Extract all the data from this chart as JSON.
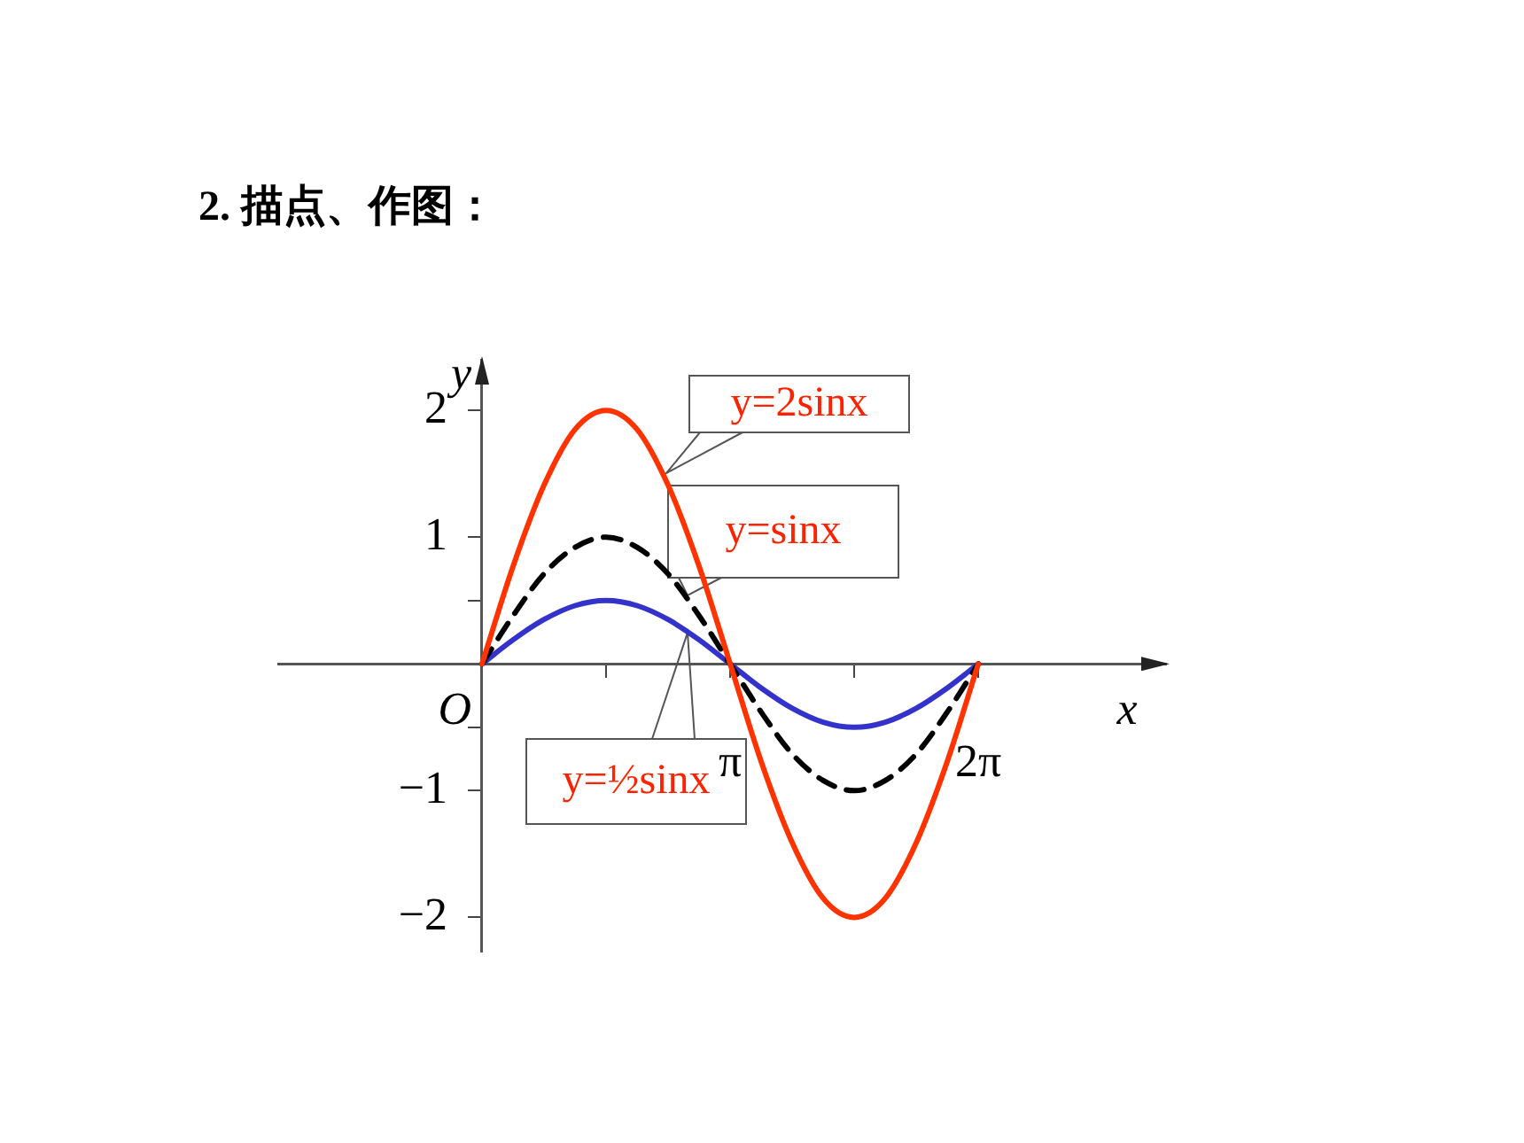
{
  "chart_data": {
    "type": "line",
    "title": "2. 描点、作图：",
    "xlabel": "x",
    "ylabel": "y",
    "xlim": [
      -2.58,
      8.66
    ],
    "ylim": [
      -2.27,
      2.4
    ],
    "xticks": [
      {
        "value": 1.5708,
        "label": null
      },
      {
        "value": 3.1416,
        "label": "π"
      },
      {
        "value": 4.7124,
        "label": null
      },
      {
        "value": 6.2832,
        "label": "2π"
      }
    ],
    "yticks": [
      -2,
      -1,
      {
        "value": -0.5,
        "label": null
      },
      {
        "value": 0.5,
        "label": null
      },
      1,
      2
    ],
    "x": [
      0,
      0.393,
      0.785,
      1.178,
      1.571,
      1.963,
      2.356,
      2.749,
      3.142,
      3.534,
      3.927,
      4.32,
      4.712,
      5.105,
      5.498,
      5.89,
      6.283
    ],
    "series": [
      {
        "name": null,
        "color": "#ff3300",
        "line_style": "solid",
        "values": [
          0,
          0.77,
          1.41,
          1.85,
          2,
          1.85,
          1.41,
          0.77,
          0,
          -0.77,
          -1.41,
          -1.85,
          -2,
          -1.85,
          -1.41,
          -0.77,
          0
        ]
      },
      {
        "name": null,
        "color": "#000000",
        "line_style": "dashed",
        "values": [
          0,
          0.38,
          0.71,
          0.92,
          1,
          0.92,
          0.71,
          0.38,
          0,
          -0.38,
          -0.71,
          -0.92,
          -1,
          -0.92,
          -0.71,
          -0.38,
          0
        ]
      },
      {
        "name": null,
        "color": "#3333cc",
        "line_style": "solid",
        "values": [
          0,
          0.19,
          0.35,
          0.46,
          0.5,
          0.46,
          0.35,
          0.19,
          0,
          -0.19,
          -0.35,
          -0.46,
          -0.5,
          -0.46,
          -0.35,
          -0.19,
          0
        ]
      }
    ],
    "annotations": [
      "y=2sinx",
      "y=sinx",
      "y=½sinx",
      "O"
    ],
    "grid": false,
    "legend": false,
    "marker": "none"
  }
}
